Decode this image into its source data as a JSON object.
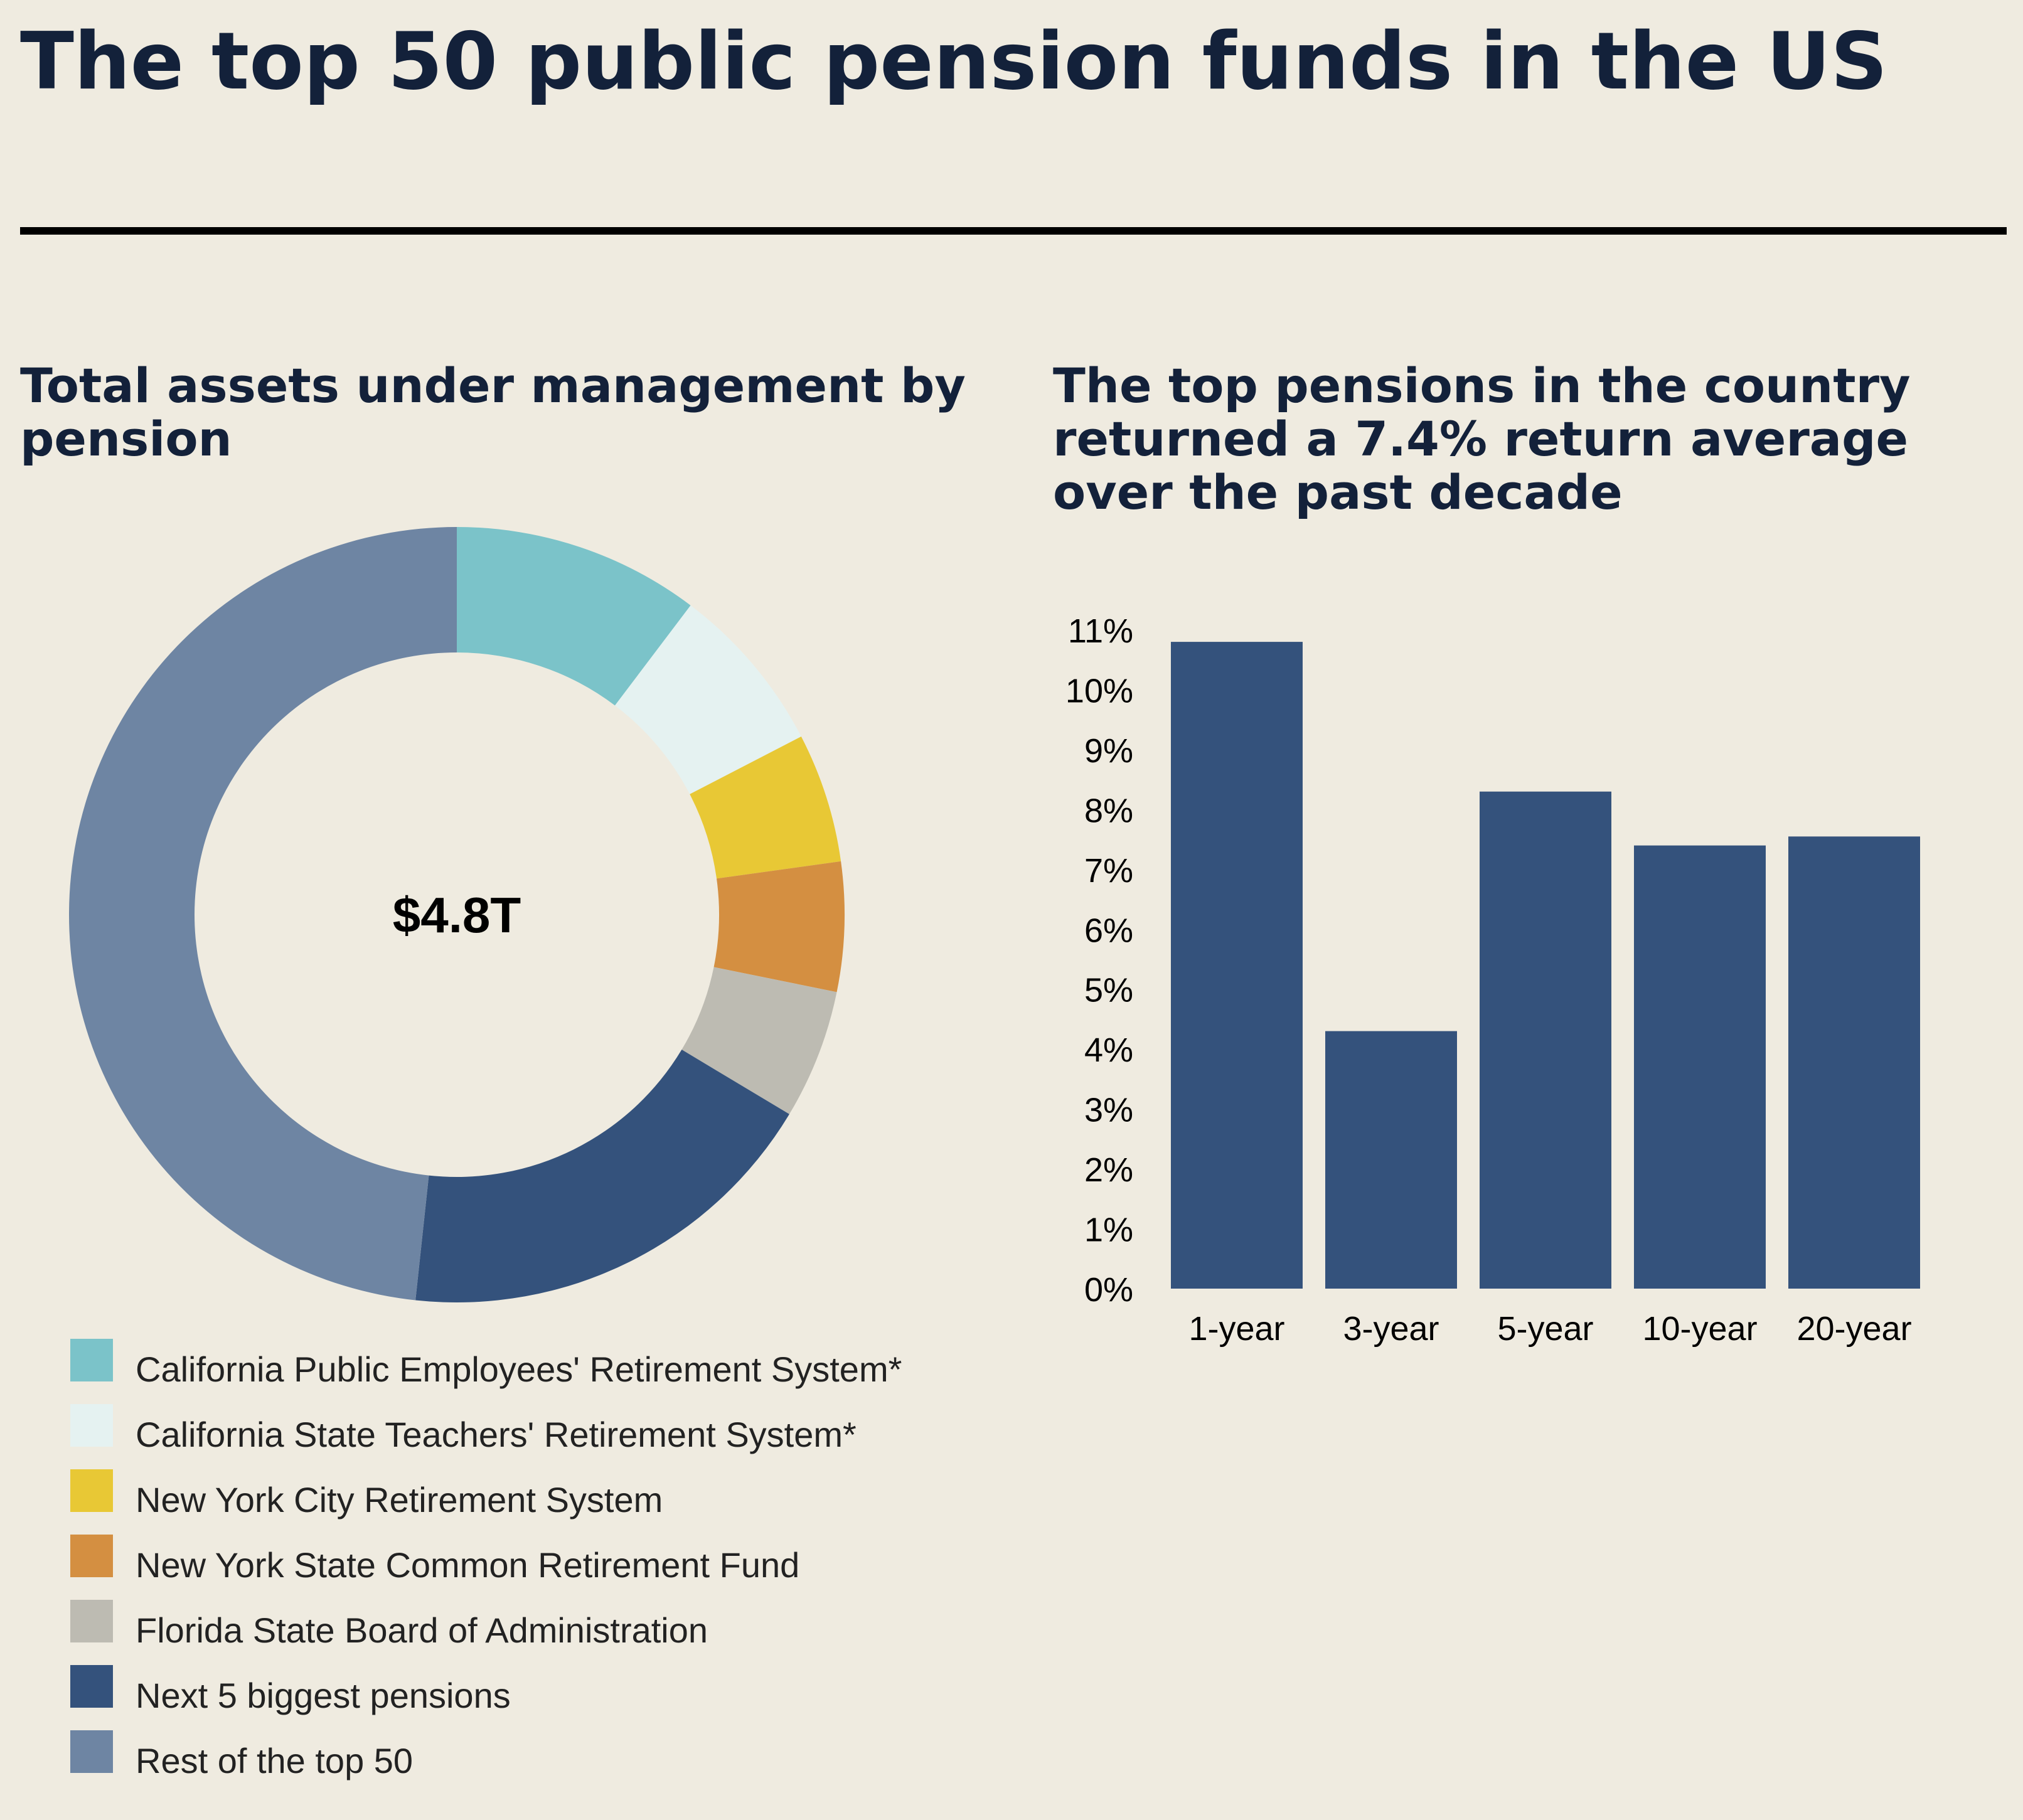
{
  "title": "The top 50 public pension funds in the US",
  "charts": [
    {
      "subtitle": "Total assets under management by pension",
      "center_label": "$4.8T"
    },
    {
      "subtitle": "The top pensions in the country returned a 7.4% return average over the past decade"
    }
  ],
  "chart_data": [
    {
      "type": "pie",
      "title": "Total assets under management by pension",
      "center_label": "$4.8T",
      "labels": [
        "California Public Employees' Retirement System*",
        "California State Teachers' Retirement System*",
        "New York City Retirement System",
        "New York State Common Retirement Fund",
        "Florida State Board of Administration",
        "Next 5 biggest pensions",
        "Rest of the top 50"
      ],
      "values": [
        0.103,
        0.071,
        0.054,
        0.054,
        0.054,
        0.181,
        0.483
      ],
      "colors": [
        "#7bc3c9",
        "#e5f2f1",
        "#e8c835",
        "#d48f41",
        "#bdbbb2",
        "#34527c",
        "#6e85a3"
      ],
      "legend_position": "bottom"
    },
    {
      "type": "bar",
      "title": "The top pensions in the country returned a 7.4% return average over the past decade",
      "categories": [
        "1-year",
        "3-year",
        "5-year",
        "10-year",
        "20-year"
      ],
      "values": [
        10.8,
        4.3,
        8.3,
        7.4,
        7.55
      ],
      "ylim": [
        0,
        11
      ],
      "yticks": [
        "0%",
        "1%",
        "2%",
        "3%",
        "4%",
        "5%",
        "6%",
        "7%",
        "8%",
        "9%",
        "10%",
        "11%"
      ],
      "color": "#34527c",
      "grid": false
    }
  ]
}
